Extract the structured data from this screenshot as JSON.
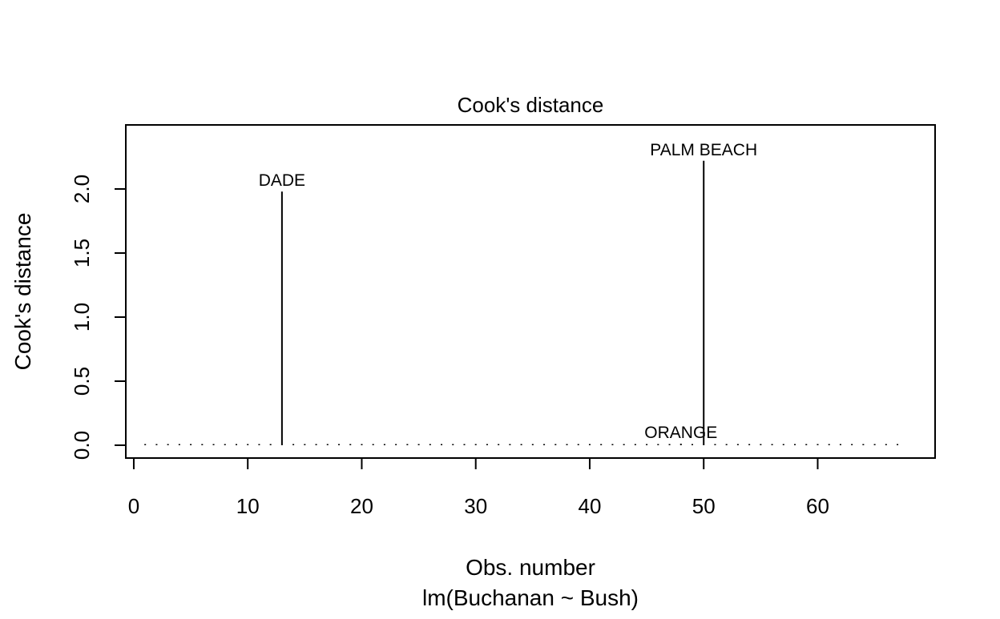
{
  "chart_data": {
    "type": "bar",
    "title": "Cook's distance",
    "xlabel": "Obs. number",
    "subtitle": "lm(Buchanan ~ Bush)",
    "ylabel": "Cook's distance",
    "xlim": [
      -0.7,
      70.3
    ],
    "ylim": [
      -0.1,
      2.5
    ],
    "x_ticks": [
      0,
      10,
      20,
      30,
      40,
      50,
      60
    ],
    "y_ticks": [
      0.0,
      0.5,
      1.0,
      1.5,
      2.0
    ],
    "x_tick_labels": [
      "0",
      "10",
      "20",
      "30",
      "40",
      "50",
      "60"
    ],
    "y_tick_labels": [
      "0.0",
      "0.5",
      "1.0",
      "1.5",
      "2.0"
    ],
    "grid": false,
    "legend": "none",
    "bar_color": "#000000",
    "x": [
      1,
      2,
      3,
      4,
      5,
      6,
      7,
      8,
      9,
      10,
      11,
      12,
      13,
      14,
      15,
      16,
      17,
      18,
      19,
      20,
      21,
      22,
      23,
      24,
      25,
      26,
      27,
      28,
      29,
      30,
      31,
      32,
      33,
      34,
      35,
      36,
      37,
      38,
      39,
      40,
      41,
      42,
      43,
      44,
      45,
      46,
      47,
      48,
      49,
      50,
      51,
      52,
      53,
      54,
      55,
      56,
      57,
      58,
      59,
      60,
      61,
      62,
      63,
      64,
      65,
      66,
      67
    ],
    "values": [
      0.001,
      0.002,
      0.001,
      0.002,
      0.001,
      0.006,
      0.001,
      0.002,
      0.001,
      0.001,
      0.002,
      0.001,
      1.98,
      0.002,
      0.001,
      0.006,
      0.002,
      0.001,
      0.001,
      0.002,
      0.001,
      0.001,
      0.002,
      0.001,
      0.001,
      0.002,
      0.001,
      0.001,
      0.002,
      0.001,
      0.001,
      0.002,
      0.001,
      0.001,
      0.002,
      0.008,
      0.001,
      0.001,
      0.002,
      0.001,
      0.001,
      0.002,
      0.001,
      0.001,
      0.002,
      0.001,
      0.001,
      0.012,
      0.002,
      2.22,
      0.001,
      0.001,
      0.002,
      0.001,
      0.001,
      0.002,
      0.001,
      0.001,
      0.002,
      0.001,
      0.001,
      0.002,
      0.001,
      0.001,
      0.002,
      0.001,
      0.001
    ],
    "annotations": [
      {
        "label": "DADE",
        "x": 13,
        "y": 1.98
      },
      {
        "label": "PALM BEACH",
        "x": 50,
        "y": 2.22
      },
      {
        "label": "ORANGE",
        "x": 48,
        "y": 0.012
      }
    ]
  }
}
